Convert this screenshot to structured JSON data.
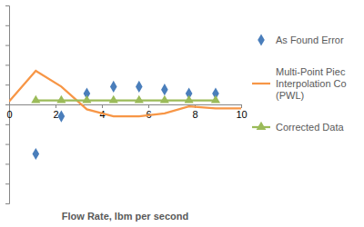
{
  "chart_data": {
    "type": "line",
    "x_label": "Flow Rate, lbm per second",
    "xlim": [
      0,
      10
    ],
    "xticks": [
      0,
      2,
      4,
      6,
      8,
      10
    ],
    "ylim": [
      -5,
      5
    ],
    "yticks": [
      -5,
      -4,
      -3,
      -2,
      -1,
      0,
      1,
      2,
      3,
      4,
      5
    ],
    "tick_labels": "x",
    "grid": false,
    "legend": "right",
    "series": [
      {
        "name": "As Found Error",
        "type": "scatter",
        "color": "#4a7ebb",
        "marker": "diamond",
        "x": [
          1.15,
          2.25,
          3.35,
          4.5,
          5.6,
          6.7,
          7.75,
          8.9
        ],
        "values": [
          -2.5,
          -0.6,
          0.55,
          0.9,
          0.9,
          0.75,
          0.55,
          0.55
        ]
      },
      {
        "name": "Multi-Point Piec Interpolation Co (PWL)",
        "type": "line",
        "color": "#f79646",
        "marker": "none",
        "line_style": "solid",
        "x": [
          0,
          1.15,
          2.25,
          3.35,
          4.5,
          5.6,
          6.7,
          7.75,
          8.9,
          10
        ],
        "values": [
          0.15,
          1.7,
          0.9,
          -0.25,
          -0.6,
          -0.6,
          -0.45,
          -0.1,
          -0.2,
          -0.2
        ]
      },
      {
        "name": "Corrected Data",
        "type": "line",
        "color": "#9bbb59",
        "marker": "triangle",
        "line_style": "solid",
        "x": [
          1.15,
          2.25,
          3.35,
          4.5,
          5.6,
          6.7,
          7.75,
          8.9
        ],
        "values": [
          0.2,
          0.2,
          0.2,
          0.2,
          0.2,
          0.2,
          0.2,
          0.2
        ]
      }
    ]
  }
}
